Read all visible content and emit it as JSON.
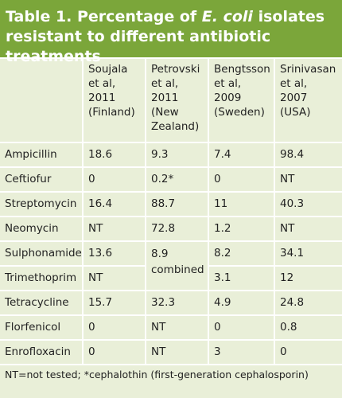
{
  "title": [
    "Table 1. Percentage of ",
    "E. coli",
    " isolates resistant to different antibiotic treatments"
  ],
  "table": {
    "header": [
      "",
      "Soujala et al, 2011 (Finland)",
      "Petrovski et al, 2011 (New Zealand)",
      "Bengtsson et al, 2009 (Sweden)",
      "Srinivasan et al, 2007 (USA)"
    ],
    "rows": [
      [
        "Ampicillin",
        "18.6",
        "9.3",
        "7.4",
        "98.4"
      ],
      [
        "Ceftiofur",
        "0",
        "0.2*",
        "0",
        "NT"
      ],
      [
        "Streptomycin",
        "16.4",
        "88.7",
        "11",
        "40.3"
      ],
      [
        "Neomycin",
        "NT",
        "72.8",
        "1.2",
        "NT"
      ],
      [
        "Sulphonamide",
        "13.6",
        "8.9 combined",
        "8.2",
        "34.1"
      ],
      [
        "Trimethoprim",
        "NT",
        "3.1",
        "12"
      ],
      [
        "Tetracycline",
        "15.7",
        "32.3",
        "4.9",
        "24.8"
      ],
      [
        "Florfenicol",
        "0",
        "NT",
        "0",
        "0.8"
      ],
      [
        "Enrofloxacin",
        "0",
        "NT",
        "3",
        "0"
      ]
    ]
  },
  "footer": "NT=not tested; *cephalothin (first-generation cephalosporin)"
}
